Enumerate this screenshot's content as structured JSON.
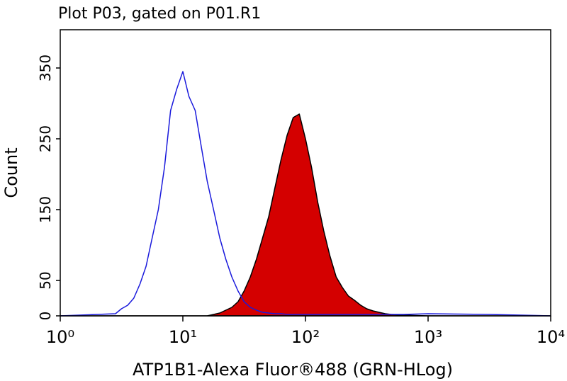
{
  "chart_data": {
    "type": "histogram-overlay",
    "title": "Plot P03, gated on P01.R1",
    "x_label": "ATP1B1-Alexa Fluor®488 (GRN-HLog)",
    "y_label": "Count",
    "x_scale": "log",
    "xlim": [
      1,
      10000
    ],
    "ylim": [
      0,
      404
    ],
    "xticks": [
      {
        "value": 1,
        "label": "10⁰"
      },
      {
        "value": 10,
        "label": "10¹"
      },
      {
        "value": 100,
        "label": "10²"
      },
      {
        "value": 1000,
        "label": "10³"
      },
      {
        "value": 10000,
        "label": "10⁴"
      }
    ],
    "yticks": [
      0,
      50,
      150,
      250,
      350
    ],
    "x": [
      1,
      2.82,
      3.16,
      3.55,
      3.98,
      4.47,
      5.01,
      5.62,
      6.31,
      7.08,
      7.94,
      8.91,
      10,
      11.2,
      12.6,
      14.1,
      15.8,
      17.8,
      20,
      22.4,
      25.1,
      28.2,
      31.6,
      35.5,
      39.8,
      44.7,
      50.1,
      56.2,
      63.1,
      70.8,
      79.4,
      89.1,
      100,
      112,
      126,
      141,
      158,
      178,
      200,
      224,
      251,
      282,
      316,
      355,
      398,
      447,
      501,
      631,
      1000,
      3162,
      10000
    ],
    "series": [
      {
        "color": "#d40000",
        "fill": true,
        "values": [
          0,
          0,
          0,
          0,
          0,
          0,
          0,
          0,
          0,
          0,
          0,
          0,
          0,
          0,
          0,
          0,
          0,
          2,
          4,
          8,
          12,
          20,
          35,
          55,
          80,
          110,
          140,
          180,
          220,
          255,
          280,
          285,
          250,
          210,
          160,
          120,
          85,
          55,
          40,
          28,
          22,
          15,
          10,
          7,
          5,
          3,
          2,
          1,
          0,
          0,
          0
        ]
      },
      {
        "color": "#1a1adc",
        "fill": false,
        "values": [
          0,
          3,
          10,
          15,
          25,
          45,
          70,
          110,
          150,
          210,
          290,
          320,
          345,
          310,
          290,
          240,
          190,
          150,
          110,
          80,
          55,
          35,
          20,
          12,
          8,
          5,
          4,
          3,
          3,
          2,
          2,
          2,
          2,
          2,
          2,
          2,
          2,
          2,
          2,
          2,
          2,
          2,
          2,
          2,
          2,
          2,
          2,
          2,
          3,
          2,
          0
        ]
      }
    ]
  }
}
